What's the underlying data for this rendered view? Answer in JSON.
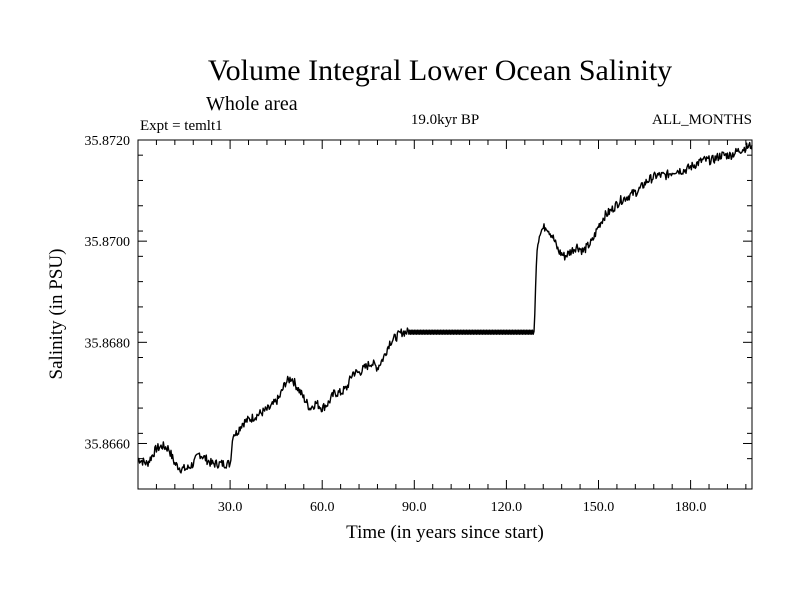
{
  "chart_data": {
    "type": "line",
    "title": "Volume Integral Lower Ocean Salinity",
    "subtitle": "Whole area",
    "experiment": "Expt = temlt1",
    "period": "19.0kyr BP",
    "months": "ALL_MONTHS",
    "xlabel": "Time (in years since start)",
    "ylabel": "Salinity (in PSU)",
    "xlim": [
      0,
      200
    ],
    "ylim": [
      35.8651,
      35.872
    ],
    "x_ticks": [
      30.0,
      60.0,
      90.0,
      120.0,
      150.0,
      180.0
    ],
    "x_tick_labels": [
      "30.0",
      "60.0",
      "90.0",
      "120.0",
      "150.0",
      "180.0"
    ],
    "y_ticks": [
      35.866,
      35.868,
      35.87,
      35.872
    ],
    "y_tick_labels": [
      "35.8660",
      "35.8680",
      "35.8700",
      "35.8720"
    ],
    "line_color": "#000000",
    "series": [
      {
        "name": "salinity",
        "x": [
          0,
          3,
          6,
          8,
          10,
          12,
          14,
          16,
          18,
          20,
          22,
          24,
          26,
          28,
          30,
          31,
          32,
          34,
          37,
          40,
          43,
          46,
          48,
          50,
          52,
          54,
          56,
          58,
          60,
          62,
          64,
          66,
          68,
          70,
          72,
          74,
          76,
          78,
          80,
          82,
          84,
          86,
          88,
          90,
          100,
          110,
          120,
          125,
          129,
          130,
          131,
          133,
          135,
          137,
          139,
          141,
          143,
          145,
          148,
          150,
          152,
          154,
          157,
          160,
          163,
          166,
          169,
          172,
          175,
          178,
          181,
          184,
          187,
          190,
          193,
          196,
          200
        ],
        "y": [
          35.8657,
          35.8656,
          35.8659,
          35.86595,
          35.8659,
          35.8656,
          35.8655,
          35.8655,
          35.8656,
          35.8658,
          35.8657,
          35.8656,
          35.8656,
          35.8656,
          35.8656,
          35.8662,
          35.8662,
          35.8664,
          35.8665,
          35.8666,
          35.8667,
          35.8669,
          35.8672,
          35.8673,
          35.8671,
          35.8669,
          35.8667,
          35.8668,
          35.8667,
          35.8668,
          35.867,
          35.867,
          35.8671,
          35.8674,
          35.8674,
          35.8675,
          35.8676,
          35.8675,
          35.8677,
          35.868,
          35.8681,
          35.8682,
          35.8682,
          35.8682,
          35.8682,
          35.8682,
          35.8682,
          35.8682,
          35.8682,
          35.8699,
          35.8702,
          35.8703,
          35.8701,
          35.8698,
          35.8697,
          35.8698,
          35.8699,
          35.8698,
          35.87,
          35.8703,
          35.8705,
          35.8706,
          35.8708,
          35.8709,
          35.871,
          35.8712,
          35.8713,
          35.8713,
          35.8714,
          35.8714,
          35.8715,
          35.8716,
          35.8716,
          35.8717,
          35.8717,
          35.8718,
          35.8719
        ]
      }
    ]
  }
}
